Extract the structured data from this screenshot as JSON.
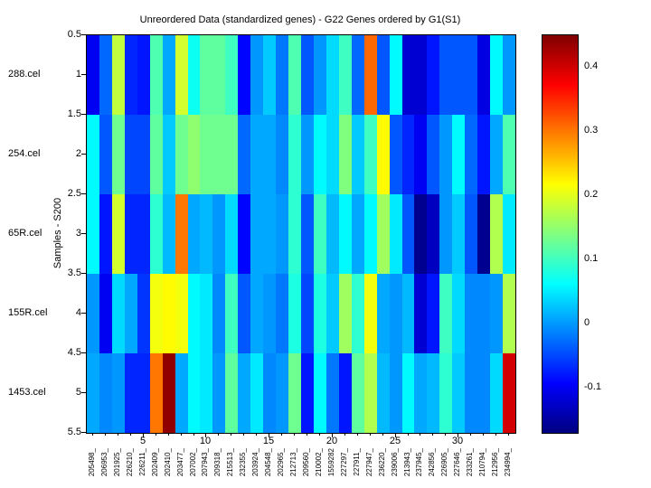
{
  "title": "Unreordered Data (standardized genes) - G22 Genes ordered by G1(S1)",
  "y_axis": {
    "label": "Samples - S200",
    "tick_labels": [
      "0.5",
      "1",
      "1.5",
      "2",
      "2.5",
      "3",
      "3.5",
      "4",
      "4.5",
      "5",
      "5.5"
    ],
    "tick_values": [
      0.5,
      1,
      1.5,
      2,
      2.5,
      3,
      3.5,
      4,
      4.5,
      5,
      5.5
    ]
  },
  "x_axis": {
    "tick_labels": [
      "5",
      "10",
      "15",
      "20",
      "25",
      "30"
    ],
    "tick_values": [
      5,
      10,
      15,
      20,
      25,
      30
    ]
  },
  "colorbar": {
    "tick_labels": [
      "0.4",
      "0.3",
      "0.2",
      "0.1",
      "0",
      "-0.1"
    ],
    "tick_values": [
      0.4,
      0.3,
      0.2,
      0.1,
      0,
      -0.1
    ]
  },
  "chart_data": {
    "type": "heatmap",
    "colormap": "jet",
    "clim": [
      -0.17,
      0.45
    ],
    "title": "Unreordered Data (standardized genes) - G22 Genes ordered by G1(S1)",
    "ylabel": "Samples - S200",
    "rows": [
      "288.cel",
      "254.cel",
      "65R.cel",
      "155R.cel",
      "1453.cel"
    ],
    "y_ticks": [
      0.5,
      1,
      1.5,
      2,
      2.5,
      3,
      3.5,
      4,
      4.5,
      5,
      5.5
    ],
    "x_ticks": [
      5,
      10,
      15,
      20,
      25,
      30
    ],
    "columns": [
      "205498_",
      "206953_",
      "201925_",
      "226210_",
      "226211_",
      "202409_",
      "202410_",
      "203477_",
      "207002_",
      "207943_",
      "209318_",
      "215513_",
      "232355_",
      "203924_",
      "204548_",
      "202965_",
      "212713_",
      "209560_",
      "210002_",
      "1559282",
      "227297_",
      "227911_",
      "227947_",
      "236220_",
      "239006_",
      "213943_",
      "237945_",
      "242856_",
      "226905_",
      "227646_",
      "233261_",
      "210794_",
      "212956_",
      "234994_"
    ],
    "values": [
      [
        -0.1,
        -0.03,
        0.18,
        -0.07,
        -0.08,
        0.11,
        0.01,
        0.19,
        0.07,
        0.12,
        0.12,
        0.1,
        -0.09,
        0.0,
        0.03,
        -0.02,
        0.11,
        -0.04,
        0.0,
        0.04,
        0.1,
        -0.03,
        0.31,
        -0.04,
        0.06,
        -0.12,
        -0.12,
        -0.08,
        -0.04,
        -0.04,
        -0.04,
        -0.11,
        0.06,
        0.0
      ],
      [
        0.06,
        -0.04,
        0.13,
        -0.05,
        -0.05,
        0.12,
        0.03,
        0.13,
        0.15,
        0.13,
        0.13,
        0.13,
        -0.03,
        0.01,
        0.01,
        -0.01,
        0.09,
        0.0,
        0.06,
        0.04,
        0.14,
        0.03,
        0.1,
        0.22,
        -0.04,
        -0.07,
        -0.1,
        -0.04,
        0.0,
        0.06,
        -0.03,
        -0.08,
        0.01,
        0.11
      ],
      [
        0.06,
        -0.08,
        0.19,
        -0.07,
        -0.07,
        0.09,
        0.02,
        0.3,
        0.01,
        0.02,
        0.0,
        0.04,
        -0.09,
        0.01,
        0.01,
        0.0,
        0.09,
        -0.04,
        0.1,
        0.02,
        0.06,
        0.01,
        0.06,
        0.16,
        0.05,
        -0.04,
        -0.16,
        -0.13,
        0.0,
        0.03,
        -0.04,
        -0.16,
        0.17,
        0.05
      ],
      [
        0.0,
        -0.1,
        0.04,
        0.01,
        -0.06,
        0.21,
        0.22,
        0.21,
        0.06,
        0.05,
        -0.01,
        0.1,
        -0.04,
        0.01,
        0.0,
        -0.02,
        0.08,
        -0.05,
        0.08,
        0.03,
        0.16,
        0.09,
        0.21,
        0.01,
        0.0,
        0.02,
        -0.12,
        -0.08,
        0.1,
        0.04,
        -0.01,
        -0.01,
        0.0,
        0.17
      ],
      [
        0.01,
        -0.01,
        0.0,
        -0.07,
        -0.07,
        0.3,
        0.44,
        0.01,
        0.06,
        0.05,
        0.0,
        0.12,
        0.01,
        0.05,
        -0.01,
        0.0,
        0.13,
        -0.08,
        0.06,
        -0.02,
        -0.08,
        0.12,
        0.17,
        0.02,
        0.0,
        0.06,
        0.01,
        0.02,
        0.09,
        0.03,
        -0.01,
        -0.01,
        0.04,
        0.4
      ]
    ]
  }
}
